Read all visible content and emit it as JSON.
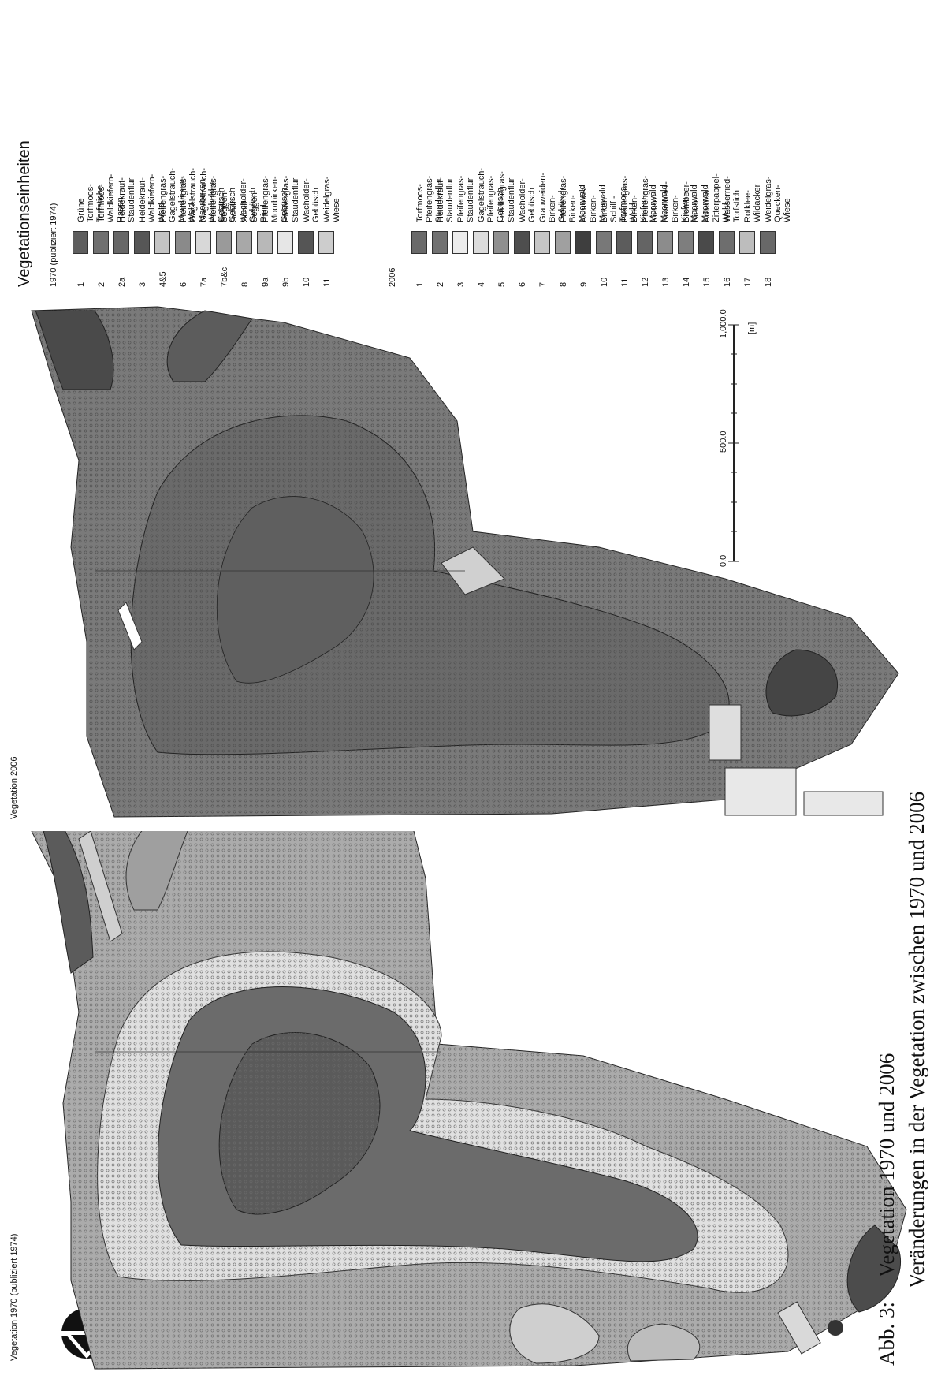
{
  "maps": {
    "title_1970": "Vegetation 1970 (publiziert 1974)",
    "title_2006": "Vegetation 2006"
  },
  "scale_bar": {
    "labels": [
      "0.0",
      "500.0",
      "1,000.0"
    ],
    "unit": "[m]"
  },
  "legend": {
    "title": "Vegetationseinheiten",
    "section_1970": {
      "heading": "1970 (publiziert 1974)",
      "items": [
        {
          "num": "1",
          "label": "Grüne Torfmoos-Torfstiche",
          "color": "#5e5e5e"
        },
        {
          "num": "2",
          "label": "Torfmoos-Waldkiefern-Rasen",
          "color": "#6f6f6f"
        },
        {
          "num": "2a",
          "label": "Heidekraut-Staudenflur",
          "color": "#676767"
        },
        {
          "num": "3",
          "label": "Heidekraut-Waldkiefern-Wald",
          "color": "#565656"
        },
        {
          "num": "4&5",
          "label": "Pfeifengras-Gagelstrauch-Moorbirken-Wald",
          "color": "#c4c4c4"
        },
        {
          "num": "6",
          "label": "Pfeifengras-Gagelstrauch-Moorbirken-Wacholder-Gebüsch",
          "color": "#8a8a8a"
        },
        {
          "num": "7a",
          "label": "Gagelstrauch-Pfeifengras-Schilf-Gebüsch",
          "color": "#d8d8d8"
        },
        {
          "num": "7b&c",
          "label": "Seggen-Schilf-Wacholder-Gebüsch",
          "color": "#9a9a9a"
        },
        {
          "num": "8",
          "label": "Schilf-Seggen-Ried",
          "color": "#a8a8a8"
        },
        {
          "num": "9a",
          "label": "Pfeifengras-Moorbirken-Gebüsch",
          "color": "#b8b8b8"
        },
        {
          "num": "9b",
          "label": "Pfeifengras-Staudenflur",
          "color": "#e6e6e6"
        },
        {
          "num": "10",
          "label": "Wacholder-Gebüsch",
          "color": "#555555"
        },
        {
          "num": "11",
          "label": "Weidelgras-Wiese",
          "color": "#cdcdcd"
        }
      ]
    },
    "section_2006": {
      "heading": "2006",
      "items": [
        {
          "num": "1",
          "label": "Torfmoos-Pfeifengras-Staudenflur",
          "color": "#6a6a6a"
        },
        {
          "num": "2",
          "label": "Heidekraut-Staudenflur",
          "color": "#717171"
        },
        {
          "num": "3",
          "label": "Pfeifengras-Staudenflur",
          "color": "#ececec"
        },
        {
          "num": "4",
          "label": "Gagelstrauch-Pfeifengras-Gebüsch",
          "color": "#dcdcdc"
        },
        {
          "num": "5",
          "label": "Landreitgras-Staudenflur",
          "color": "#8f8f8f"
        },
        {
          "num": "6",
          "label": "Wacholder-Gebüsch",
          "color": "#4e4e4e"
        },
        {
          "num": "7",
          "label": "Grauweiden-Birken-Gebüsch",
          "color": "#c6c6c6"
        },
        {
          "num": "8",
          "label": "Pfeifengras-Birken-Moorwald",
          "color": "#a0a0a0"
        },
        {
          "num": "9",
          "label": "Astmoos-Birken-Moorwald",
          "color": "#3e3e3e"
        },
        {
          "num": "10",
          "label": "Birken-Schilf -Torfmoos-Wald",
          "color": "#787878"
        },
        {
          "num": "11",
          "label": "Pfeifengras-Birken-Kiefern-Moorwald",
          "color": "#5c5c5c"
        },
        {
          "num": "12",
          "label": "Pfeifengras-Kiefern-Moorwald",
          "color": "#646464"
        },
        {
          "num": "13",
          "label": "Brombeer-Birken-Kiefern-Moorwald",
          "color": "#8c8c8c"
        },
        {
          "num": "14",
          "label": "Brombeer-Birken-Moorwald",
          "color": "#7e7e7e"
        },
        {
          "num": "15",
          "label": "Adlerfarn-Zitterpappel-Wald",
          "color": "#4a4a4a"
        },
        {
          "num": "16",
          "label": "Wasserried-Torfstich",
          "color": "#6e6e6e"
        },
        {
          "num": "17",
          "label": "Rotklee-Wildacker",
          "color": "#bdbdbd"
        },
        {
          "num": "18",
          "label": "Weidelgras-Quecken-Wiese",
          "color": "#686868"
        }
      ]
    }
  },
  "caption": {
    "label": "Abb. 3:",
    "line1": "Vegetation 1970 und 2006",
    "line2": "Veränderungen in der Vegetation zwischen 1970 und 2006"
  }
}
